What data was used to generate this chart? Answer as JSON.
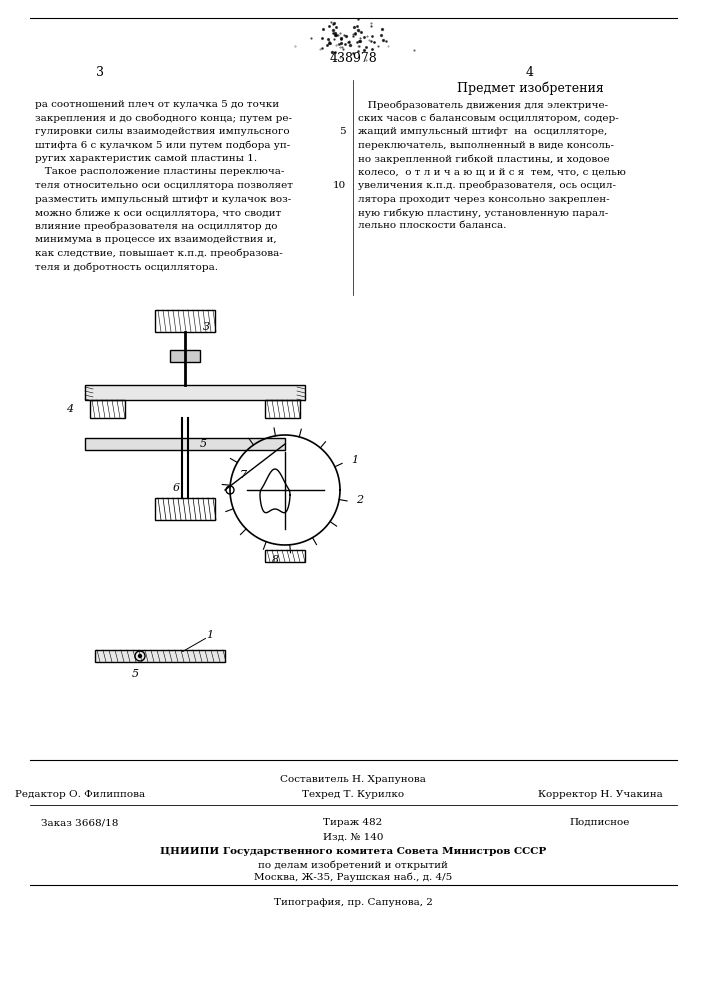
{
  "patent_number": "438978",
  "page_left": "3",
  "page_right": "4",
  "title_right": "Предмет изобретения",
  "text_left_lines": [
    "ра соотношений плеч от кулачка 5 до точки",
    "закрепления и до свободного конца; путем ре-",
    "гулировки силы взаимодействия импульсного",
    "штифта 6 с кулачком 5 или путем подбора уп-",
    "ругих характеристик самой пластины 1.",
    "   Такое расположение пластины переключа-",
    "теля относительно оси осциллятора позволяет",
    "разместить импульсный штифт и кулачок воз-",
    "можно ближе к оси осциллятора, что сводит",
    "влияние преобразователя на осциллятор до",
    "минимума в процессе их взаимодействия и,",
    "как следствие, повышает к.п.д. преобразова-",
    "теля и добротность осциллятора."
  ],
  "text_right_lines_body": [
    "   Преобразователь движения для электриче-",
    "ских часов с балансовым осциллятором, содер-",
    "жащий импульсный штифт  на  осцилляторе,",
    "переключатель, выполненный в виде консоль-",
    "но закрепленной гибкой пластины, и ходовое",
    "колесо,  о т л и ч а ю щ и й с я  тем, что, с целью",
    "увеличения к.п.д. преобразователя, ось осцил-",
    "лятора проходит через консольно закреплен-",
    "ную гибкую пластину, установленную парал-",
    "лельно плоскости баланса."
  ],
  "line_numbers_right": [
    "5",
    "10"
  ],
  "bottom_section": {
    "compositor": "Составитель Н. Храпунова",
    "editor": "Редактор О. Филиппова",
    "tech": "Техред Т. Курилко",
    "corrector": "Корректор Н. Учакина",
    "order": "Заказ 3668/18",
    "print_run": "Тираж 482",
    "type": "Подписное",
    "publisher_line1": "Изд. № 140",
    "publisher_line2": "ЦНИИПИ Государственного комитета Совета Министров СССР",
    "publisher_line3": "по делам изобретений и открытий",
    "publisher_line4": "Москва, Ж-35, Раушская наб., д. 4/5",
    "printing": "Типография, пр. Сапунова, 2"
  },
  "bg_color": "#ffffff",
  "text_color": "#000000",
  "line_color": "#000000"
}
